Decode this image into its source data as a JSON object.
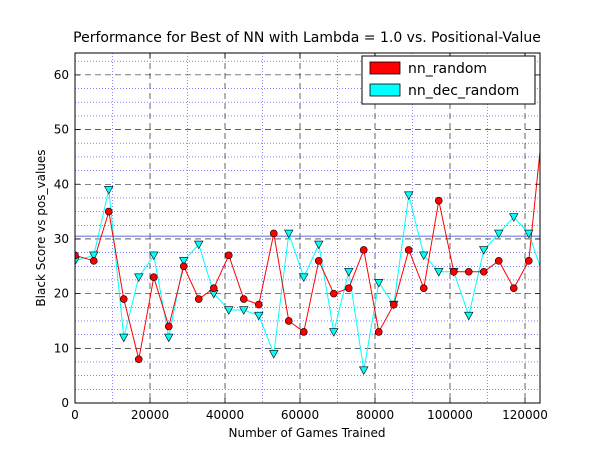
{
  "chart_data": {
    "type": "line",
    "title": "Performance for Best of NN with Lambda = 1.0 vs. Positional-Value",
    "xlabel": "Number of Games Trained",
    "ylabel": "Black Score vs pos_values",
    "xlim": [
      0,
      124000
    ],
    "ylim": [
      0,
      64
    ],
    "x_ticks": [
      0,
      20000,
      40000,
      60000,
      80000,
      100000,
      120000
    ],
    "y_ticks": [
      0,
      10,
      20,
      30,
      40,
      50,
      60
    ],
    "grid": true,
    "legend_position": "top-right",
    "reference_line": {
      "y": 30.5,
      "color": "#6b7fe6"
    },
    "series": [
      {
        "name": "nn_random",
        "color": "#ff0000",
        "marker": "circle",
        "x": [
          0,
          5000,
          9000,
          13000,
          17000,
          21000,
          25000,
          29000,
          33000,
          37000,
          41000,
          45000,
          49000,
          53000,
          57000,
          61000,
          65000,
          69000,
          73000,
          77000,
          81000,
          85000,
          89000,
          93000,
          97000,
          101000,
          105000,
          109000,
          113000,
          117000,
          121000,
          124000
        ],
        "y": [
          27,
          26,
          35,
          19,
          8,
          23,
          14,
          25,
          19,
          21,
          27,
          19,
          18,
          31,
          15,
          13,
          26,
          20,
          21,
          28,
          13,
          18,
          28,
          21,
          37,
          24,
          24,
          24,
          26,
          21,
          26,
          46
        ]
      },
      {
        "name": "nn_dec_random",
        "color": "#00ffff",
        "marker": "triangle-down",
        "x": [
          0,
          5000,
          9000,
          13000,
          17000,
          21000,
          25000,
          29000,
          33000,
          37000,
          41000,
          45000,
          49000,
          53000,
          57000,
          61000,
          65000,
          69000,
          73000,
          77000,
          81000,
          85000,
          89000,
          93000,
          97000,
          101000,
          105000,
          109000,
          113000,
          117000,
          121000,
          124000
        ],
        "y": [
          26,
          27,
          39,
          12,
          23,
          27,
          12,
          26,
          29,
          20,
          17,
          17,
          16,
          9,
          31,
          23,
          29,
          13,
          24,
          6,
          22,
          18,
          38,
          27,
          24,
          24,
          16,
          28,
          31,
          34,
          31,
          25
        ]
      }
    ]
  }
}
